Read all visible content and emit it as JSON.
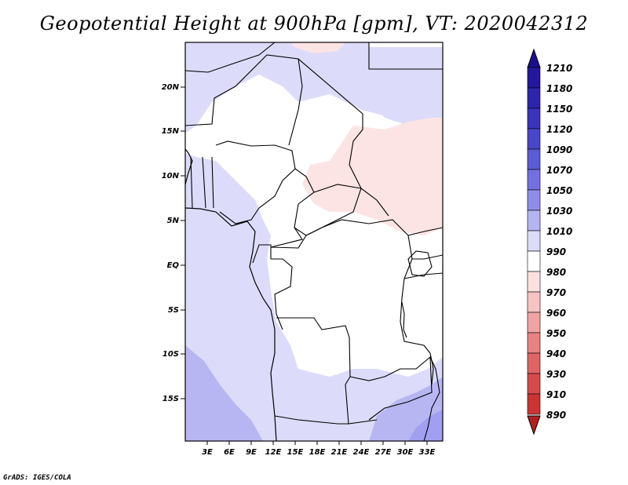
{
  "title": "Geopotential Height at 900hPa [gpm], VT: 2020042312",
  "credit": "GrADS: IGES/COLA",
  "lat_labels": [
    "20N",
    "15N",
    "10N",
    "5N",
    "EQ",
    "5S",
    "10S",
    "15S"
  ],
  "lon_labels": [
    "3E",
    "6E",
    "9E",
    "12E",
    "15E",
    "18E",
    "21E",
    "24E",
    "27E",
    "30E",
    "33E"
  ],
  "colorbar": {
    "labels": [
      "1210",
      "1180",
      "1150",
      "1120",
      "1090",
      "1070",
      "1050",
      "1030",
      "1010",
      "990",
      "980",
      "970",
      "960",
      "950",
      "940",
      "930",
      "910",
      "890"
    ],
    "colors": [
      "#1a0f8f",
      "#24179e",
      "#2d24ad",
      "#3a33bc",
      "#4a46c9",
      "#5c5bd6",
      "#7270e0",
      "#8e8ee9",
      "#b4b4f2",
      "#dcdcfa",
      "#ffffff",
      "#fde1e1",
      "#f8c3c3",
      "#f1a2a2",
      "#e88282",
      "#df6464",
      "#d84a4a",
      "#cc3333",
      "#b21f1f"
    ]
  },
  "map_colors": {
    "light_blue": "#dcdcfa",
    "medium_blue": "#b8b6f2",
    "deep_blue": "#8e8ee9",
    "pink": "#fde4e4"
  }
}
